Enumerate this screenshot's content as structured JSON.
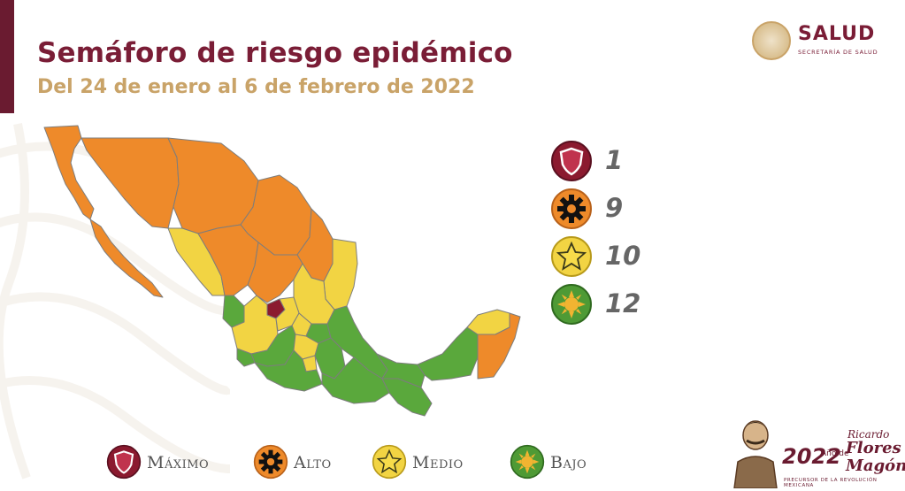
{
  "title": "Semáforo de riesgo epidémico",
  "subtitle": "Del 24 de enero al 6 de febrero de 2022",
  "logo": {
    "word": "SALUD",
    "sub": "SECRETARÍA DE SALUD"
  },
  "colors": {
    "maximo": "#8b1a2f",
    "alto": "#ee8a2a",
    "medio": "#f2d443",
    "bajo": "#5aa83c",
    "border": "#7d7d7d",
    "brand": "#7a1d36",
    "gold": "#c9a368"
  },
  "counts": [
    {
      "level": "maximo",
      "value": "1",
      "icon": "shield-icon"
    },
    {
      "level": "alto",
      "value": "9",
      "icon": "gear-icon"
    },
    {
      "level": "medio",
      "value": "10",
      "icon": "star-icon"
    },
    {
      "level": "bajo",
      "value": "12",
      "icon": "sun-icon"
    }
  ],
  "key": [
    {
      "level": "maximo",
      "label": "Máximo",
      "icon": "shield-icon"
    },
    {
      "level": "alto",
      "label": "Alto",
      "icon": "gear-icon"
    },
    {
      "level": "medio",
      "label": "Medio",
      "icon": "star-icon"
    },
    {
      "level": "bajo",
      "label": "Bajo",
      "icon": "sun-icon"
    }
  ],
  "footer_logo": {
    "year": "2022",
    "ano": "Año de",
    "name1": "Ricardo",
    "name2": "Flores",
    "name3": "Magón",
    "tag": "PRECURSOR DE LA REVOLUCIÓN MEXICANA"
  }
}
